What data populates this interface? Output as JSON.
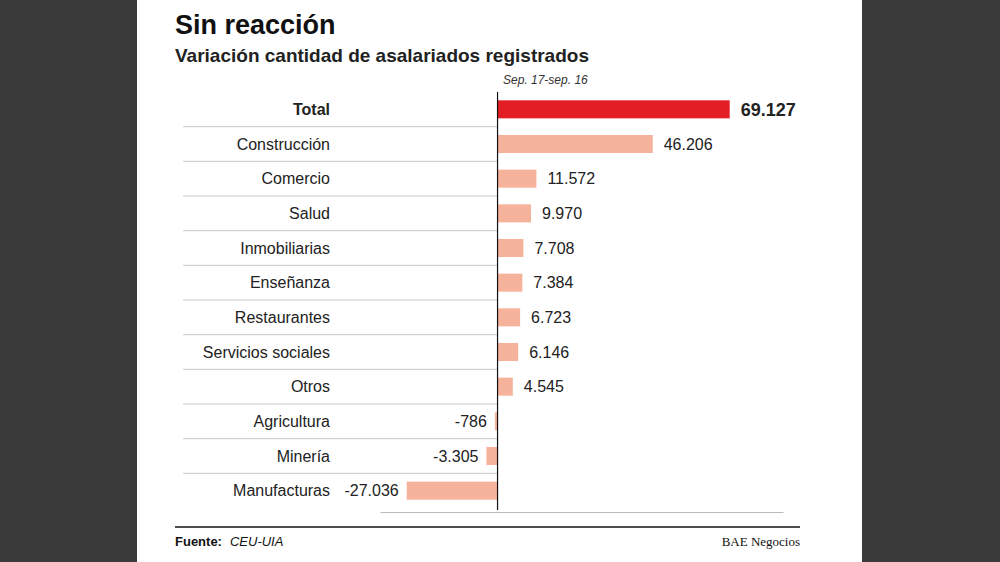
{
  "chart_data": {
    "type": "bar",
    "orientation": "horizontal",
    "title": "Sin reacción",
    "subtitle": "Variación cantidad de asalariados registrados",
    "xlabel": "Sep. 17-sep. 16",
    "categories": [
      "Total",
      "Construcción",
      "Comercio",
      "Salud",
      "Inmobiliarias",
      "Enseñanza",
      "Restaurantes",
      "Servicios sociales",
      "Otros",
      "Agricultura",
      "Minería",
      "Manufacturas"
    ],
    "values": [
      69127,
      46206,
      11572,
      9970,
      7708,
      7384,
      6723,
      6146,
      4545,
      -786,
      -3305,
      -27036
    ],
    "value_labels": [
      "69.127",
      "46.206",
      "11.572",
      "9.970",
      "7.708",
      "7.384",
      "6.723",
      "6.146",
      "4.545",
      "-786",
      "-3.305",
      "-27.036"
    ],
    "colors": [
      "#e31e24",
      "#f5b39b",
      "#f5b39b",
      "#f5b39b",
      "#f5b39b",
      "#f5b39b",
      "#f5b39b",
      "#f5b39b",
      "#f5b39b",
      "#f5b39b",
      "#f5b39b",
      "#f5b39b"
    ],
    "data_labels": true,
    "xlim": [
      -35000,
      85000
    ],
    "xticks": [],
    "tick_labels": false,
    "grid": false,
    "source_label": "Fuente:",
    "source": "CEU-UIA",
    "credit": "BAE Negocios"
  }
}
